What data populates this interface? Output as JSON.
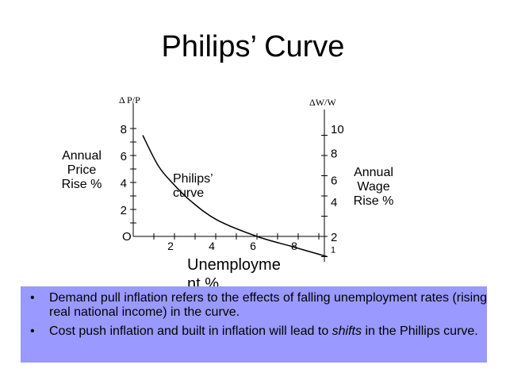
{
  "title": "Philips’ Curve",
  "left_axis_title": "Δ P/P",
  "right_axis_title": "ΔW/W",
  "left_label": [
    "Annual",
    "Price",
    "Rise %"
  ],
  "right_label": [
    "Annual",
    "Wage",
    "Rise %"
  ],
  "x_label": [
    "Unemployme",
    "nt %"
  ],
  "curve_label": [
    "Philips’",
    "curve"
  ],
  "origin_label": "O",
  "bullets": [
    {
      "pre": "Demand pull inflation refers to the effects of falling unemployment rates (rising real national income) in the curve.",
      "em": "",
      "post": ""
    },
    {
      "pre": "Cost push inflation and built in inflation will lead to ",
      "em": "shifts",
      "post": " in the Phillips curve."
    }
  ],
  "colors": {
    "box": "#9999ff",
    "line": "#000000"
  },
  "chart_data": {
    "type": "line",
    "title": "Philips’ Curve",
    "xlabel": "Unemployment %",
    "ylabel": "Annual Price Rise %",
    "y2label": "Annual Wage Rise %",
    "xlim": [
      0,
      9.4
    ],
    "ylim": [
      0,
      8
    ],
    "x_ticks": [
      2,
      4,
      6,
      8
    ],
    "y_ticks": [
      2,
      4,
      6,
      8
    ],
    "y2_ticks": [
      {
        "label": "10",
        "at_y": 8
      },
      {
        "label": "8",
        "at_y": 6.2
      },
      {
        "label": "6",
        "at_y": 4.2
      },
      {
        "label": "4",
        "at_y": 2.6
      },
      {
        "label": "2",
        "at_y": 0
      },
      {
        "label": "1",
        "at_y": -0.9
      }
    ],
    "grid": false,
    "series": [
      {
        "x": [
          0.46,
          1.23,
          2.0,
          2.77,
          4.04,
          6.0,
          7.7,
          9.4
        ],
        "y": [
          7.5,
          5.2,
          3.8,
          2.65,
          1.24,
          0,
          -0.75,
          -1.5
        ]
      }
    ]
  }
}
